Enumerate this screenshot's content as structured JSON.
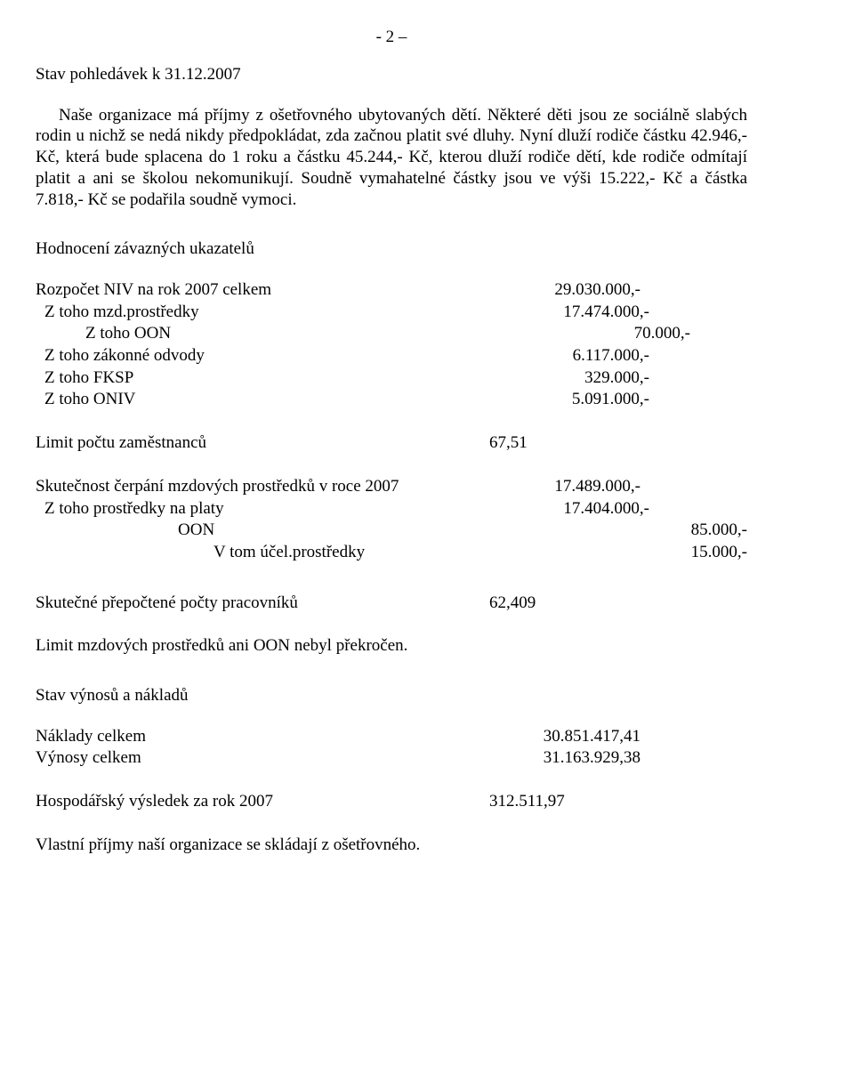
{
  "page_number": "- 2 –",
  "para1_title": "Stav pohledávek k 31.12.2007",
  "para1_body": "Naše organizace má příjmy z ošetřovného ubytovaných dětí. Některé děti jsou ze sociálně slabých rodin u nichž se nedá nikdy předpokládat, zda začnou platit své dluhy. Nyní dluží rodiče částku  42.946,- Kč, která bude splacena do 1 roku a částku 45.244,- Kč, kterou dluží rodiče  dětí, kde rodiče odmítají platit a ani se školou nekomunikují. Soudně vymahatelné  částky jsou ve výši 15.222,- Kč a částka 7.818,- Kč se podařila soudně vymoci.",
  "heading2": "Hodnocení závazných ukazatelů",
  "budget_rows": [
    {
      "label": "Rozpočet NIV na rok 2007 celkem",
      "value": "29.030.000,-",
      "indent": ""
    },
    {
      "label": "Z toho mzd.prostředky",
      "value": "17.474.000,-",
      "indent": "indent-1"
    },
    {
      "label": "Z toho OON",
      "value": "70.000,-",
      "indent": "indent-2"
    },
    {
      "label": "Z toho zákonné odvody",
      "value": "6.117.000,-",
      "indent": "indent-1"
    },
    {
      "label": "Z toho FKSP",
      "value": "329.000,-",
      "indent": "indent-1"
    },
    {
      "label": "Z toho ONIV",
      "value": "5.091.000,-",
      "indent": "indent-1"
    }
  ],
  "limit_row": {
    "label": "Limit počtu zaměstnanců",
    "value": "67,51"
  },
  "skut_rows": [
    {
      "label": "Skutečnost čerpání mzdových prostředků v roce 2007",
      "value": "17.489.000,-",
      "indent": ""
    },
    {
      "label": "Z toho prostředky na platy",
      "value": "17.404.000,-",
      "indent": "indent-1"
    },
    {
      "label": "OON",
      "value": "85.000,-",
      "indent": "indent-3"
    },
    {
      "label": "V tom účel.prostředky",
      "value": "15.000,-",
      "indent": "indent-4"
    }
  ],
  "prep_row": {
    "label": "Skutečné přepočtené  počty pracovníků",
    "value": "62,409"
  },
  "limit_text": "Limit mzdových prostředků ani OON nebyl překročen.",
  "heading3": "Stav výnosů a nákladů",
  "nv_rows": [
    {
      "label": "Náklady celkem",
      "value": "30.851.417,41"
    },
    {
      "label": "Výnosy celkem",
      "value": "31.163.929,38"
    }
  ],
  "hv_row": {
    "label": "Hospodářský výsledek za rok 2007",
    "value": "312.511,97"
  },
  "final_para": "Vlastní příjmy naší organizace se skládají z ošetřovného."
}
